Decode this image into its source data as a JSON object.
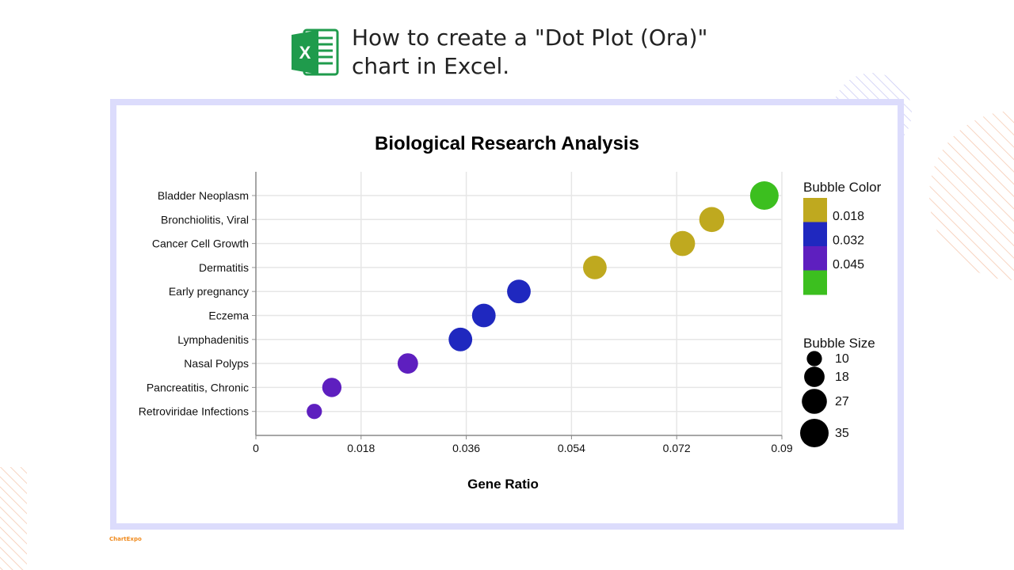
{
  "header": {
    "title": "How to create a \"Dot Plot (Ora)\"\nchart in Excel.",
    "logo_icon": "excel-icon",
    "logo_color": "#1f9b4c"
  },
  "brand": {
    "text": "ChartExpo"
  },
  "colors": {
    "frame": "#dcdcfc",
    "decor_orange": "#f5c7ae",
    "decor_blue": "#c9c9f4"
  },
  "chart_data": {
    "type": "scatter",
    "title": "Biological Research Analysis",
    "xlabel": "Gene Ratio",
    "ylabel": "",
    "xlim": [
      0,
      0.09
    ],
    "x_ticks": [
      "0",
      "0.018",
      "0.036",
      "0.054",
      "0.072",
      "0.09"
    ],
    "x_tick_values": [
      0,
      0.018,
      0.036,
      0.054,
      0.072,
      0.09
    ],
    "grid": true,
    "categories": [
      "Bladder Neoplasm",
      "Bronchiolitis, Viral",
      "Cancer Cell Growth",
      "Dermatitis",
      "Early pregnancy",
      "Eczema",
      "Lymphadenitis",
      "Nasal Polyps",
      "Pancreatitis, Chronic",
      "Retroviridae Infections"
    ],
    "x": [
      0.087,
      0.078,
      0.073,
      0.058,
      0.045,
      0.039,
      0.035,
      0.026,
      0.013,
      0.01
    ],
    "bubble_size": [
      35,
      27,
      27,
      24,
      24,
      24,
      24,
      18,
      16,
      10
    ],
    "bubble_color_value": [
      0.05,
      0.012,
      0.012,
      0.012,
      0.028,
      0.028,
      0.028,
      0.04,
      0.04,
      0.04
    ],
    "point_colors": [
      "#3cbf1f",
      "#bfa91f",
      "#bfa91f",
      "#bfa91f",
      "#1f28bf",
      "#1f28bf",
      "#1f28bf",
      "#5e1fbf",
      "#5e1fbf",
      "#5e1fbf"
    ],
    "color_legend": {
      "title": "Bubble Color",
      "labels": [
        "0.018",
        "0.032",
        "0.045"
      ],
      "colors": [
        "#bfa91f",
        "#1f28bf",
        "#5e1fbf",
        "#3cbf1f"
      ]
    },
    "size_legend": {
      "title": "Bubble Size",
      "labels": [
        "10",
        "18",
        "27",
        "35"
      ],
      "values": [
        10,
        18,
        27,
        35
      ]
    },
    "legend_position": "right"
  }
}
